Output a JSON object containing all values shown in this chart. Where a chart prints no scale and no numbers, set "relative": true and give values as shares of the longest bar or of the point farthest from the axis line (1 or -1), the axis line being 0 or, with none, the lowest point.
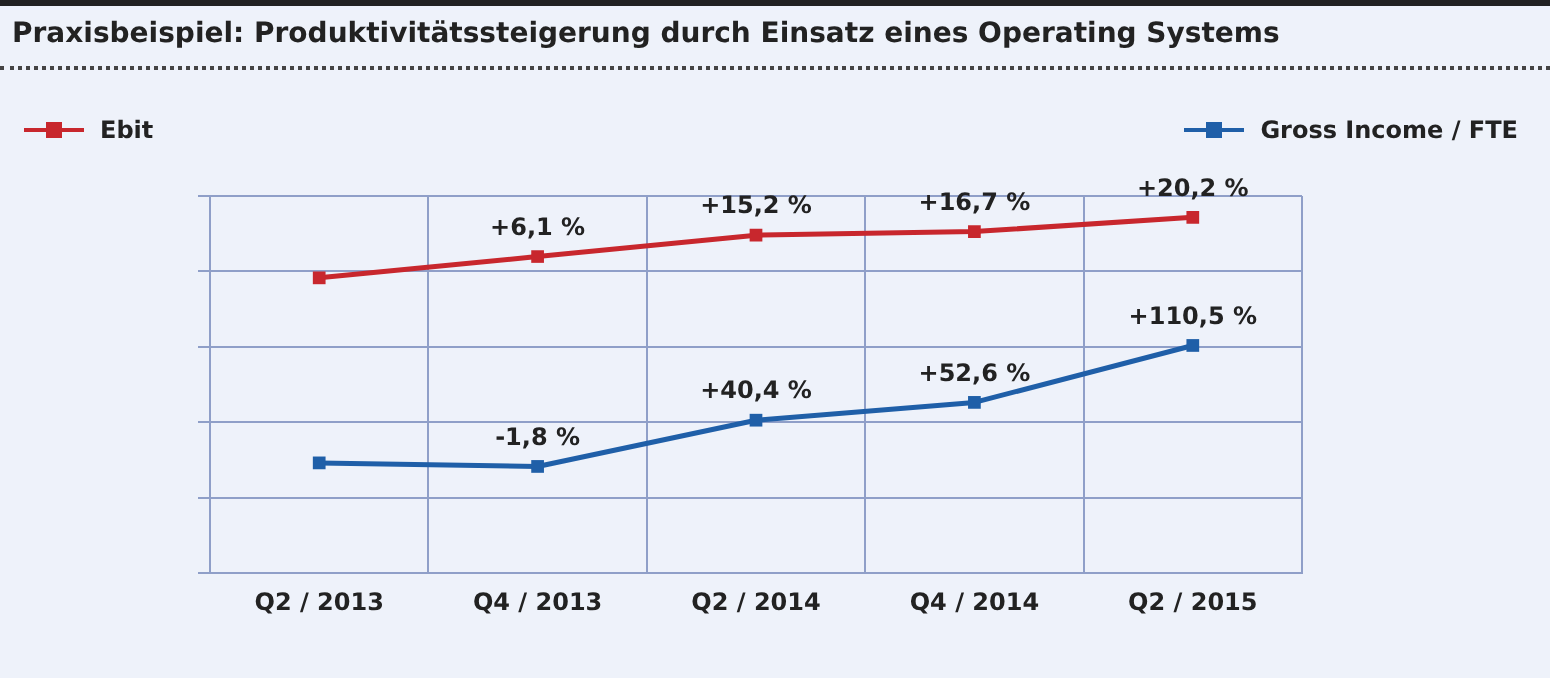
{
  "chart_data": {
    "type": "line",
    "title": "Praxisbeispiel: Produktivitätssteigerung durch Einsatz eines Operating Systems",
    "categories": [
      "Q2 / 2013",
      "Q4 / 2013",
      "Q2 / 2014",
      "Q4 / 2014",
      "Q2 / 2015"
    ],
    "relative": true,
    "grid": true,
    "legend": "top",
    "marker": "square",
    "line_style": "solid",
    "series": [
      {
        "name": "Ebit",
        "color": "#c8272d",
        "values": [
          0.83,
          0.89,
          0.95,
          0.96,
          1.0
        ]
      },
      {
        "name": "Gross Income / FTE",
        "color": "#1f5fa8",
        "values": [
          0.31,
          0.3,
          0.43,
          0.48,
          0.64
        ]
      }
    ],
    "annotations": [
      {
        "text": "+6,1 %",
        "x": "Q4 / 2013",
        "y": 0.89
      },
      {
        "text": "+15,2 %",
        "x": "Q2 / 2014",
        "y": 0.95
      },
      {
        "text": "+16,7 %",
        "x": "Q4 / 2014",
        "y": 0.96
      },
      {
        "text": "+20,2 %",
        "x": "Q2 / 2015",
        "y": 1.0
      },
      {
        "text": "-1,8 %",
        "x": "Q4 / 2013",
        "y": 0.3
      },
      {
        "text": "+40,4 %",
        "x": "Q2 / 2014",
        "y": 0.43
      },
      {
        "text": "+52,6 %",
        "x": "Q4 / 2014",
        "y": 0.48
      },
      {
        "text": "+110,5 %",
        "x": "Q2 / 2015",
        "y": 0.64
      }
    ]
  }
}
